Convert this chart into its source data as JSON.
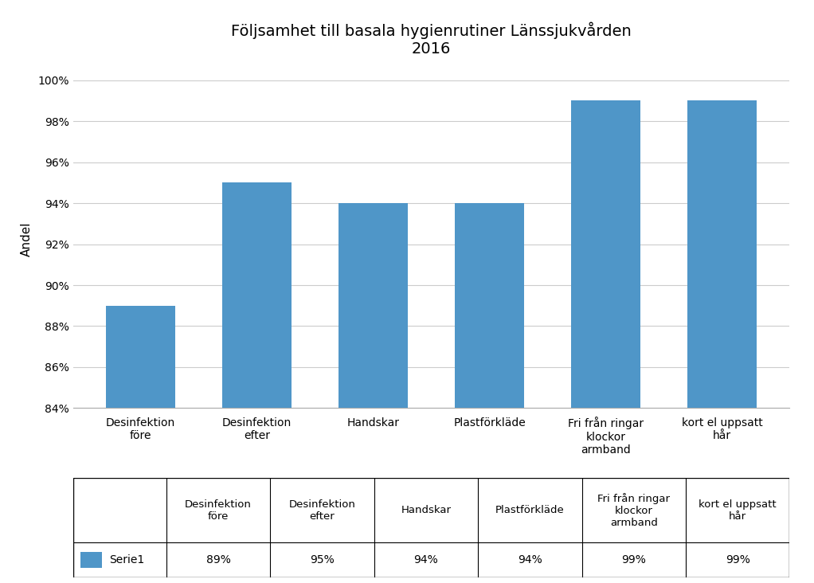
{
  "title_line1": "Följsamhet till basala hygienrutiner Länssjukvården",
  "title_line2": "2016",
  "categories": [
    "Desinfektion\nföre",
    "Desinfektion\nefter",
    "Handskar",
    "Plastförkläde",
    "Fri från ringar\nklockor\narmband",
    "kort el uppsatt\nhår"
  ],
  "values": [
    0.89,
    0.95,
    0.94,
    0.94,
    0.99,
    0.99
  ],
  "bar_color": "#4F96C8",
  "ylabel": "Andel",
  "ylim_min": 0.84,
  "ylim_max": 1.005,
  "yticks": [
    0.84,
    0.86,
    0.88,
    0.9,
    0.92,
    0.94,
    0.96,
    0.98,
    1.0
  ],
  "ytick_labels": [
    "84%",
    "86%",
    "88%",
    "90%",
    "92%",
    "94%",
    "96%",
    "98%",
    "100%"
  ],
  "legend_label": "Serie1",
  "legend_values": [
    "89%",
    "95%",
    "94%",
    "94%",
    "99%",
    "99%"
  ],
  "background_color": "#ffffff",
  "grid_color": "#cccccc",
  "title_fontsize": 14,
  "axis_label_fontsize": 11,
  "tick_fontsize": 10,
  "legend_fontsize": 10,
  "table_fontsize": 10
}
